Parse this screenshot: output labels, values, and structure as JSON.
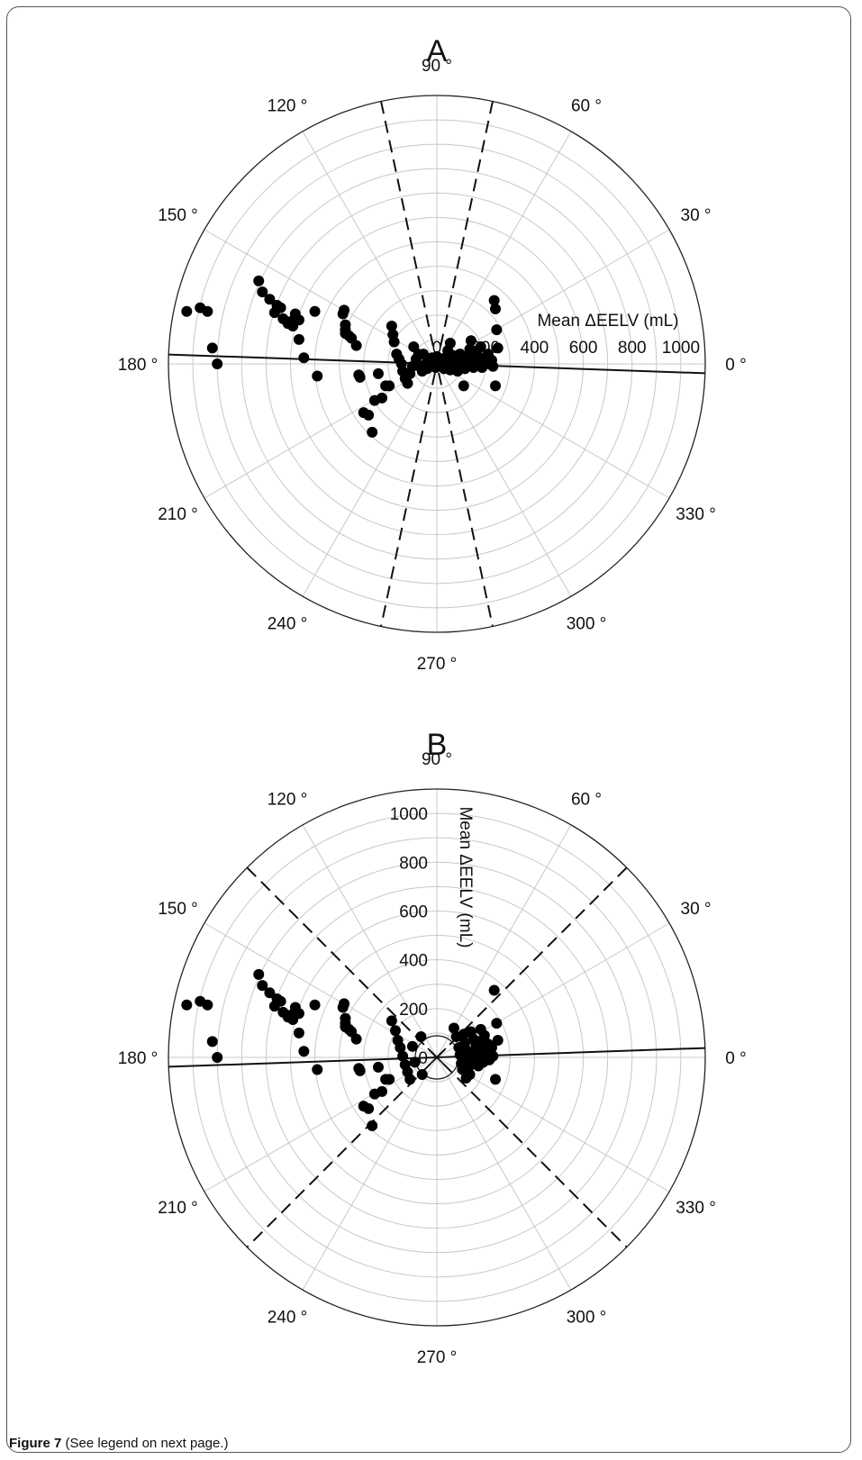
{
  "caption": {
    "label": "Figure 7",
    "text": "(See legend on next page.)"
  },
  "chart_data": [
    {
      "panel": "A",
      "type": "scatter",
      "coordinate_system": "polar",
      "title": "A",
      "radial_label": "Mean ΔEELV (mL)",
      "radial_ticks": [
        "0",
        "200",
        "400",
        "600",
        "800",
        "1000"
      ],
      "r_range": [
        0,
        1100
      ],
      "angular_ticks": [
        "0 °",
        "30 °",
        "60 °",
        "90 °",
        "120 °",
        "150 °",
        "180 °",
        "210 °",
        "240 °",
        "270 °",
        "300 °",
        "330 °"
      ],
      "grid": true,
      "regression_angle_deg": -2,
      "dashed_limits_deg": [
        78,
        102,
        258,
        282
      ],
      "center_marker": false,
      "points_xy_ml": [
        [
          -1025,
          215
        ],
        [
          -970,
          230
        ],
        [
          -940,
          215
        ],
        [
          -920,
          65
        ],
        [
          -900,
          0
        ],
        [
          -730,
          340
        ],
        [
          -715,
          295
        ],
        [
          -685,
          265
        ],
        [
          -665,
          210
        ],
        [
          -655,
          240
        ],
        [
          -640,
          230
        ],
        [
          -630,
          185
        ],
        [
          -610,
          165
        ],
        [
          -590,
          155
        ],
        [
          -595,
          175
        ],
        [
          -580,
          205
        ],
        [
          -565,
          180
        ],
        [
          -565,
          100
        ],
        [
          -545,
          25
        ],
        [
          -500,
          215
        ],
        [
          -490,
          -50
        ],
        [
          -380,
          220
        ],
        [
          -385,
          205
        ],
        [
          -375,
          160
        ],
        [
          -375,
          140
        ],
        [
          -375,
          125
        ],
        [
          -360,
          115
        ],
        [
          -350,
          105
        ],
        [
          -330,
          75
        ],
        [
          -320,
          -45
        ],
        [
          -315,
          -55
        ],
        [
          -300,
          -200
        ],
        [
          -280,
          -210
        ],
        [
          -265,
          -280
        ],
        [
          -255,
          -150
        ],
        [
          -240,
          -40
        ],
        [
          -225,
          -140
        ],
        [
          -210,
          -90
        ],
        [
          -195,
          -90
        ],
        [
          -185,
          155
        ],
        [
          -180,
          120
        ],
        [
          -175,
          90
        ],
        [
          -165,
          40
        ],
        [
          -155,
          20
        ],
        [
          -145,
          0
        ],
        [
          -140,
          -30
        ],
        [
          -130,
          -60
        ],
        [
          -120,
          -80
        ],
        [
          -110,
          -40
        ],
        [
          -100,
          -10
        ],
        [
          -95,
          70
        ],
        [
          -85,
          20
        ],
        [
          -75,
          40
        ],
        [
          -70,
          -10
        ],
        [
          -60,
          -30
        ],
        [
          -55,
          40
        ],
        [
          -45,
          0
        ],
        [
          -40,
          -20
        ],
        [
          -30,
          15
        ],
        [
          -25,
          -5
        ],
        [
          -20,
          25
        ],
        [
          -15,
          10
        ],
        [
          -10,
          0
        ],
        [
          -5,
          -15
        ],
        [
          0,
          30
        ],
        [
          5,
          0
        ],
        [
          10,
          15
        ],
        [
          15,
          -10
        ],
        [
          20,
          20
        ],
        [
          25,
          0
        ],
        [
          30,
          -20
        ],
        [
          35,
          10
        ],
        [
          40,
          30
        ],
        [
          45,
          -5
        ],
        [
          50,
          15
        ],
        [
          55,
          -25
        ],
        [
          60,
          5
        ],
        [
          65,
          35
        ],
        [
          70,
          -15
        ],
        [
          75,
          20
        ],
        [
          80,
          0
        ],
        [
          85,
          -30
        ],
        [
          90,
          15
        ],
        [
          95,
          40
        ],
        [
          100,
          -10
        ],
        [
          105,
          25
        ],
        [
          110,
          5
        ],
        [
          115,
          -20
        ],
        [
          120,
          30
        ],
        [
          125,
          10
        ],
        [
          130,
          -5
        ],
        [
          135,
          60
        ],
        [
          140,
          95
        ],
        [
          145,
          25
        ],
        [
          150,
          -15
        ],
        [
          160,
          35
        ],
        [
          165,
          55
        ],
        [
          170,
          0
        ],
        [
          180,
          70
        ],
        [
          185,
          -15
        ],
        [
          195,
          25
        ],
        [
          210,
          40
        ],
        [
          215,
          0
        ],
        [
          225,
          15
        ],
        [
          230,
          -10
        ],
        [
          245,
          140
        ],
        [
          250,
          65
        ],
        [
          235,
          260
        ],
        [
          240,
          225
        ],
        [
          240,
          -90
        ],
        [
          55,
          85
        ],
        [
          110,
          -90
        ],
        [
          45,
          55
        ]
      ]
    },
    {
      "panel": "B",
      "type": "scatter",
      "coordinate_system": "polar",
      "title": "B",
      "radial_label": "Mean ΔEELV (mL)",
      "radial_ticks": [
        "0",
        "200",
        "400",
        "600",
        "800",
        "1000"
      ],
      "r_range": [
        0,
        1100
      ],
      "angular_ticks": [
        "0 °",
        "30 °",
        "60 °",
        "90 °",
        "120 °",
        "150 °",
        "180 °",
        "210 °",
        "240 °",
        "270 °",
        "300 °",
        "330 °"
      ],
      "grid": true,
      "regression_angle_deg": 2,
      "dashed_limits_deg": [
        45,
        135,
        225,
        315
      ],
      "center_marker": true,
      "points_xy_ml": [
        [
          -1025,
          215
        ],
        [
          -970,
          230
        ],
        [
          -940,
          215
        ],
        [
          -920,
          65
        ],
        [
          -900,
          0
        ],
        [
          -730,
          340
        ],
        [
          -715,
          295
        ],
        [
          -685,
          265
        ],
        [
          -665,
          210
        ],
        [
          -655,
          240
        ],
        [
          -640,
          230
        ],
        [
          -630,
          185
        ],
        [
          -610,
          165
        ],
        [
          -590,
          155
        ],
        [
          -595,
          175
        ],
        [
          -580,
          205
        ],
        [
          -565,
          180
        ],
        [
          -565,
          100
        ],
        [
          -545,
          25
        ],
        [
          -500,
          215
        ],
        [
          -490,
          -50
        ],
        [
          -380,
          220
        ],
        [
          -385,
          205
        ],
        [
          -375,
          160
        ],
        [
          -375,
          140
        ],
        [
          -375,
          125
        ],
        [
          -360,
          115
        ],
        [
          -350,
          105
        ],
        [
          -330,
          75
        ],
        [
          -320,
          -45
        ],
        [
          -315,
          -55
        ],
        [
          -300,
          -200
        ],
        [
          -280,
          -210
        ],
        [
          -265,
          -280
        ],
        [
          -255,
          -150
        ],
        [
          -240,
          -40
        ],
        [
          -225,
          -140
        ],
        [
          -210,
          -90
        ],
        [
          -195,
          -90
        ],
        [
          -185,
          150
        ],
        [
          -170,
          110
        ],
        [
          -160,
          70
        ],
        [
          -150,
          40
        ],
        [
          -140,
          5
        ],
        [
          -130,
          -30
        ],
        [
          -120,
          -60
        ],
        [
          -110,
          -90
        ],
        [
          -100,
          45
        ],
        [
          -90,
          -20
        ],
        [
          -65,
          85
        ],
        [
          -60,
          -70
        ],
        [
          70,
          120
        ],
        [
          80,
          85
        ],
        [
          90,
          40
        ],
        [
          95,
          10
        ],
        [
          100,
          -25
        ],
        [
          105,
          -50
        ],
        [
          110,
          95
        ],
        [
          115,
          60
        ],
        [
          120,
          30
        ],
        [
          125,
          -5
        ],
        [
          130,
          -40
        ],
        [
          135,
          -70
        ],
        [
          140,
          105
        ],
        [
          145,
          20
        ],
        [
          150,
          75
        ],
        [
          155,
          -15
        ],
        [
          160,
          50
        ],
        [
          165,
          0
        ],
        [
          170,
          -35
        ],
        [
          175,
          65
        ],
        [
          180,
          115
        ],
        [
          185,
          30
        ],
        [
          190,
          -20
        ],
        [
          195,
          90
        ],
        [
          200,
          10
        ],
        [
          210,
          55
        ],
        [
          215,
          -10
        ],
        [
          225,
          40
        ],
        [
          230,
          5
        ],
        [
          245,
          140
        ],
        [
          250,
          70
        ],
        [
          235,
          275
        ],
        [
          240,
          -90
        ],
        [
          120,
          -85
        ]
      ]
    }
  ]
}
